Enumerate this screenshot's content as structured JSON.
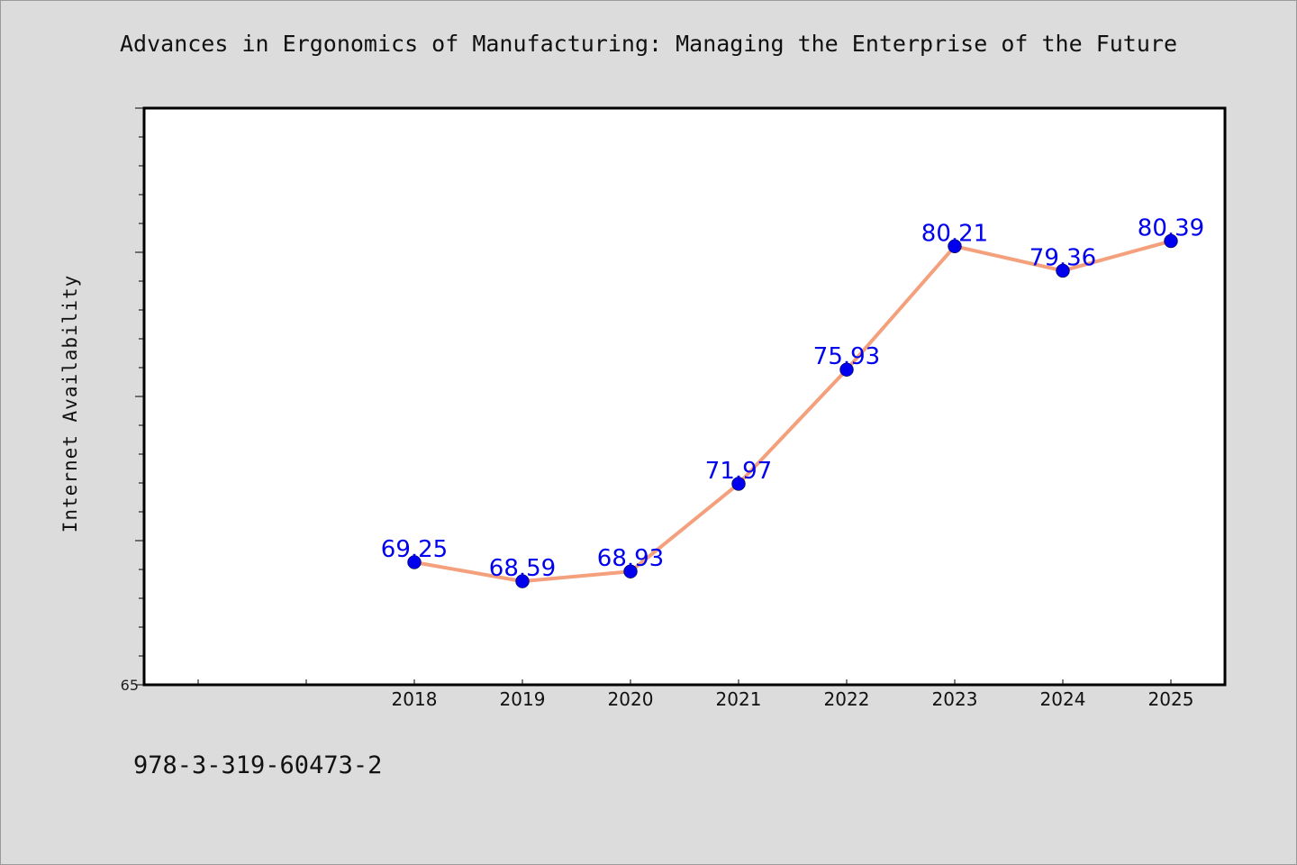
{
  "title": "Advances in Ergonomics of Manufacturing: Managing the Enterprise of the Future",
  "footnote": "978-3-319-60473-2",
  "chart_data": {
    "type": "line",
    "title": "Advances in Ergonomics of Manufacturing: Managing the Enterprise of the Future",
    "xlabel": "",
    "ylabel": "Internet Availability",
    "x": [
      "2018",
      "2019",
      "2020",
      "2021",
      "2022",
      "2023",
      "2024",
      "2025"
    ],
    "series": [
      {
        "values": [
          69.25,
          68.59,
          68.93,
          71.97,
          75.93,
          80.21,
          79.36,
          80.39
        ],
        "labels": [
          "69.25",
          "68.59",
          "68.93",
          "71.97",
          "75.93",
          "80.21",
          "79.36",
          "80.39"
        ]
      }
    ],
    "y_tick_labels": [
      "65"
    ],
    "ylim": [
      65,
      85
    ],
    "x_slots": 10,
    "grid": false,
    "legend": "none",
    "colors": {
      "line": "#f4a07c",
      "marker": "#0000ee",
      "data_label": "#0000ee",
      "plot_background": "#ffffff",
      "figure_background": "#dcdcdc"
    }
  }
}
